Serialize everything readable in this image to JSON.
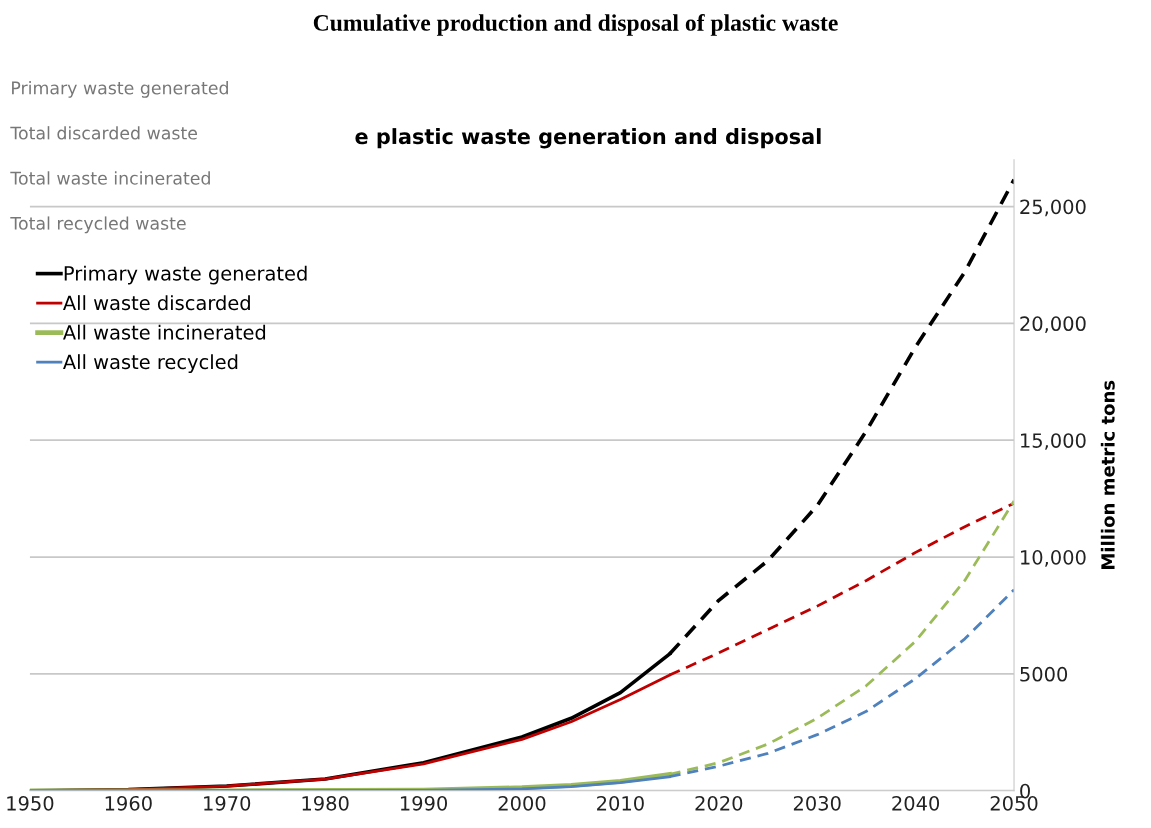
{
  "chart_data": {
    "type": "line",
    "title": "Cumulative production and disposal of plastic waste",
    "subtitle": "e plastic waste generation and disposal",
    "ylabel": "Million metric tons",
    "annotations": [
      "Primary waste generated",
      "Total discarded waste",
      "Total waste incinerated",
      "Total recycled waste"
    ],
    "series": [
      {
        "name": "Primary waste generated",
        "color": "#000000",
        "line_style": "solid",
        "x": [
          1950,
          1960,
          1970,
          1980,
          1990,
          2000,
          2005,
          2010,
          2015
        ],
        "values": [
          0,
          50,
          200,
          500,
          1200,
          2300,
          3100,
          4200,
          5850
        ]
      },
      {
        "color": "#000000",
        "line_style": "dashed",
        "x": [
          2015,
          2020,
          2025,
          2030,
          2035,
          2040,
          2045,
          2050
        ],
        "values": [
          5850,
          8150,
          9850,
          12200,
          15400,
          19000,
          22200,
          26150
        ]
      },
      {
        "name": "All waste discarded",
        "color": "#c00000",
        "line_style": "solid",
        "x": [
          1950,
          1960,
          1970,
          1980,
          1990,
          2000,
          2005,
          2010,
          2015
        ],
        "values": [
          0,
          50,
          200,
          500,
          1150,
          2200,
          2950,
          3900,
          4950
        ]
      },
      {
        "color": "#c00000",
        "line_style": "dashed",
        "x": [
          2015,
          2020,
          2025,
          2030,
          2035,
          2040,
          2045,
          2050
        ],
        "values": [
          4950,
          5900,
          6900,
          7900,
          9000,
          10200,
          11300,
          12300
        ]
      },
      {
        "name": "All waste incinerated",
        "color": "#9bbb59",
        "line_style": "solid",
        "x": [
          1950,
          1970,
          1990,
          2000,
          2005,
          2010,
          2015
        ],
        "values": [
          0,
          0,
          30,
          130,
          230,
          400,
          700
        ]
      },
      {
        "color": "#9bbb59",
        "line_style": "dashed",
        "x": [
          2015,
          2020,
          2025,
          2030,
          2035,
          2040,
          2045,
          2050
        ],
        "values": [
          700,
          1200,
          2000,
          3100,
          4500,
          6400,
          9000,
          12400
        ]
      },
      {
        "name": "All waste recycled",
        "color": "#4f81bd",
        "line_style": "solid",
        "x": [
          1950,
          1970,
          1990,
          2000,
          2005,
          2010,
          2015
        ],
        "values": [
          0,
          0,
          10,
          80,
          180,
          350,
          600
        ]
      },
      {
        "color": "#4f81bd",
        "line_style": "dashed",
        "x": [
          2015,
          2020,
          2025,
          2030,
          2035,
          2040,
          2045,
          2050
        ],
        "values": [
          600,
          1050,
          1600,
          2400,
          3400,
          4800,
          6500,
          8600
        ]
      }
    ],
    "xlim": [
      1950,
      2050
    ],
    "xticks": [
      1950,
      1960,
      1970,
      1980,
      1990,
      2000,
      2010,
      2020,
      2030,
      2040,
      2050
    ],
    "ylim": [
      0,
      27000
    ],
    "yticks": [
      0,
      {
        "value": 5000,
        "label": "5000"
      },
      {
        "value": 10000,
        "label": "10,000"
      },
      {
        "value": 15000,
        "label": "15,000"
      },
      {
        "value": 20000,
        "label": "20,000"
      },
      {
        "value": 25000,
        "label": "25,000"
      }
    ],
    "grid": "y",
    "legend": "top left",
    "marker": "none"
  }
}
